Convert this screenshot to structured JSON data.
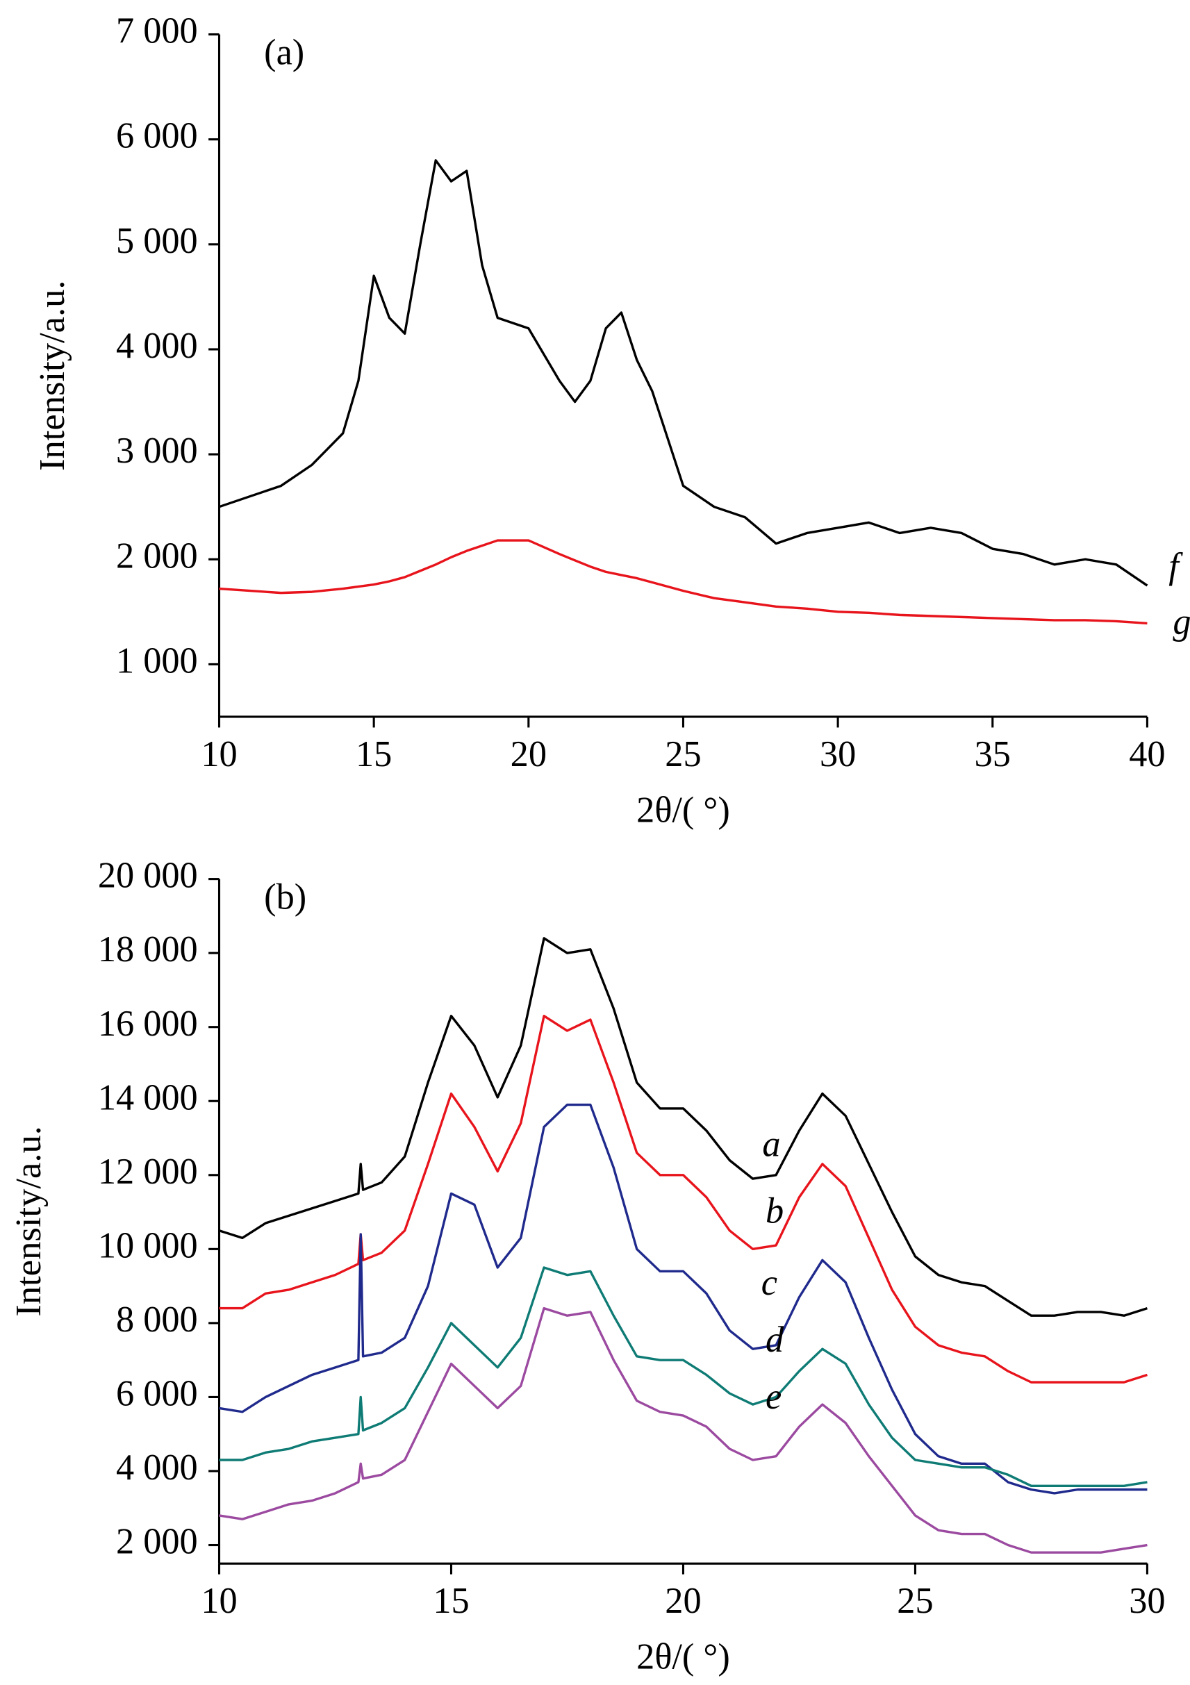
{
  "chart_data": [
    {
      "type": "line",
      "annotation": "(a)",
      "xlabel": "2θ/( °)",
      "ylabel": "Intensity/a.u.",
      "x": [
        10,
        11,
        12,
        13,
        14,
        14.5,
        15,
        15.5,
        16,
        16.5,
        17,
        17.5,
        18,
        18.5,
        19,
        20,
        21,
        21.5,
        22,
        22.5,
        23,
        23.5,
        24,
        25,
        26,
        27,
        28,
        29,
        30,
        31,
        32,
        33,
        34,
        35,
        36,
        37,
        38,
        39,
        40
      ],
      "series": [
        {
          "name": "f",
          "color": "#000000",
          "values": [
            2500,
            2600,
            2700,
            2900,
            3200,
            3700,
            4700,
            4300,
            4150,
            5000,
            5800,
            5600,
            5700,
            4800,
            4300,
            4200,
            3700,
            3500,
            3700,
            4200,
            4350,
            3900,
            3600,
            2700,
            2500,
            2400,
            2150,
            2250,
            2300,
            2350,
            2250,
            2300,
            2250,
            2100,
            2050,
            1950,
            2000,
            1950,
            1750
          ]
        },
        {
          "name": "g",
          "color": "#e8141c",
          "values": [
            1720,
            1700,
            1680,
            1690,
            1720,
            1740,
            1760,
            1790,
            1830,
            1890,
            1950,
            2020,
            2080,
            2130,
            2180,
            2180,
            2050,
            1990,
            1930,
            1880,
            1850,
            1820,
            1780,
            1700,
            1630,
            1590,
            1550,
            1530,
            1500,
            1490,
            1470,
            1460,
            1450,
            1440,
            1430,
            1420,
            1420,
            1410,
            1390
          ]
        }
      ],
      "xlim": [
        10,
        40
      ],
      "xticks": [
        10,
        15,
        20,
        25,
        30,
        35,
        40
      ],
      "ylim": [
        500,
        7000
      ],
      "yticks": [
        {
          "value": 1000,
          "label": "1 000"
        },
        {
          "value": 2000,
          "label": "2 000"
        },
        {
          "value": 3000,
          "label": "3 000"
        },
        {
          "value": 4000,
          "label": "4 000"
        },
        {
          "value": 5000,
          "label": "5 000"
        },
        {
          "value": 6000,
          "label": "6 000"
        },
        {
          "value": 7000,
          "label": "7 000"
        }
      ]
    },
    {
      "type": "line",
      "annotation": "(b)",
      "xlabel": "2θ/( °)",
      "ylabel": "Intensity/a.u.",
      "x": [
        10,
        10.5,
        11,
        11.5,
        12,
        12.5,
        13,
        13.05,
        13.1,
        13.5,
        14,
        14.5,
        15,
        15.5,
        16,
        16.5,
        17,
        17.5,
        18,
        18.5,
        19,
        19.5,
        20,
        20.5,
        21,
        21.5,
        22,
        22.5,
        23,
        23.5,
        24,
        24.5,
        25,
        25.5,
        26,
        26.5,
        27,
        27.5,
        28,
        28.5,
        29,
        29.5,
        30
      ],
      "series": [
        {
          "name": "a",
          "color": "#000000",
          "values": [
            10500,
            10300,
            10700,
            10900,
            11100,
            11300,
            11500,
            12300,
            11600,
            11800,
            12500,
            14500,
            16300,
            15500,
            14100,
            15500,
            18400,
            18000,
            18100,
            16500,
            14500,
            13800,
            13800,
            13200,
            12400,
            11900,
            12000,
            13200,
            14200,
            13600,
            12300,
            11000,
            9800,
            9300,
            9100,
            9000,
            8600,
            8200,
            8200,
            8300,
            8300,
            8200,
            8400
          ]
        },
        {
          "name": "b",
          "color": "#e8141c",
          "values": [
            8400,
            8400,
            8800,
            8900,
            9100,
            9300,
            9600,
            10400,
            9700,
            9900,
            10500,
            12300,
            14200,
            13300,
            12100,
            13400,
            16300,
            15900,
            16200,
            14500,
            12600,
            12000,
            12000,
            11400,
            10500,
            10000,
            10100,
            11400,
            12300,
            11700,
            10300,
            8900,
            7900,
            7400,
            7200,
            7100,
            6700,
            6400,
            6400,
            6400,
            6400,
            6400,
            6600
          ]
        },
        {
          "name": "c",
          "color": "#1f2a8c",
          "values": [
            5700,
            5600,
            6000,
            6300,
            6600,
            6800,
            7000,
            10400,
            7100,
            7200,
            7600,
            9000,
            11500,
            11200,
            9500,
            10300,
            13300,
            13900,
            13900,
            12200,
            10000,
            9400,
            9400,
            8800,
            7800,
            7300,
            7400,
            8700,
            9700,
            9100,
            7600,
            6200,
            5000,
            4400,
            4200,
            4200,
            3700,
            3500,
            3400,
            3500,
            3500,
            3500,
            3500
          ]
        },
        {
          "name": "d",
          "color": "#0f7b75",
          "values": [
            4300,
            4300,
            4500,
            4600,
            4800,
            4900,
            5000,
            6000,
            5100,
            5300,
            5700,
            6800,
            8000,
            7400,
            6800,
            7600,
            9500,
            9300,
            9400,
            8200,
            7100,
            7000,
            7000,
            6600,
            6100,
            5800,
            6000,
            6700,
            7300,
            6900,
            5800,
            4900,
            4300,
            4200,
            4100,
            4100,
            3900,
            3600,
            3600,
            3600,
            3600,
            3600,
            3700
          ]
        },
        {
          "name": "e",
          "color": "#9b4aa0",
          "values": [
            2800,
            2700,
            2900,
            3100,
            3200,
            3400,
            3700,
            4200,
            3800,
            3900,
            4300,
            5600,
            6900,
            6300,
            5700,
            6300,
            8400,
            8200,
            8300,
            7000,
            5900,
            5600,
            5500,
            5200,
            4600,
            4300,
            4400,
            5200,
            5800,
            5300,
            4400,
            3600,
            2800,
            2400,
            2300,
            2300,
            2000,
            1800,
            1800,
            1800,
            1800,
            1900,
            2000
          ]
        }
      ],
      "xlim": [
        10,
        30
      ],
      "xticks": [
        10,
        15,
        20,
        25,
        30
      ],
      "ylim": [
        1500,
        20000
      ],
      "yticks": [
        {
          "value": 2000,
          "label": "2 000"
        },
        {
          "value": 4000,
          "label": "4 000"
        },
        {
          "value": 6000,
          "label": "6 000"
        },
        {
          "value": 8000,
          "label": "8 000"
        },
        {
          "value": 10000,
          "label": "10 000"
        },
        {
          "value": 12000,
          "label": "12 000"
        },
        {
          "value": 14000,
          "label": "14 000"
        },
        {
          "value": 16000,
          "label": "16 000"
        },
        {
          "value": 18000,
          "label": "18 000"
        },
        {
          "value": 20000,
          "label": "20 000"
        }
      ]
    }
  ]
}
